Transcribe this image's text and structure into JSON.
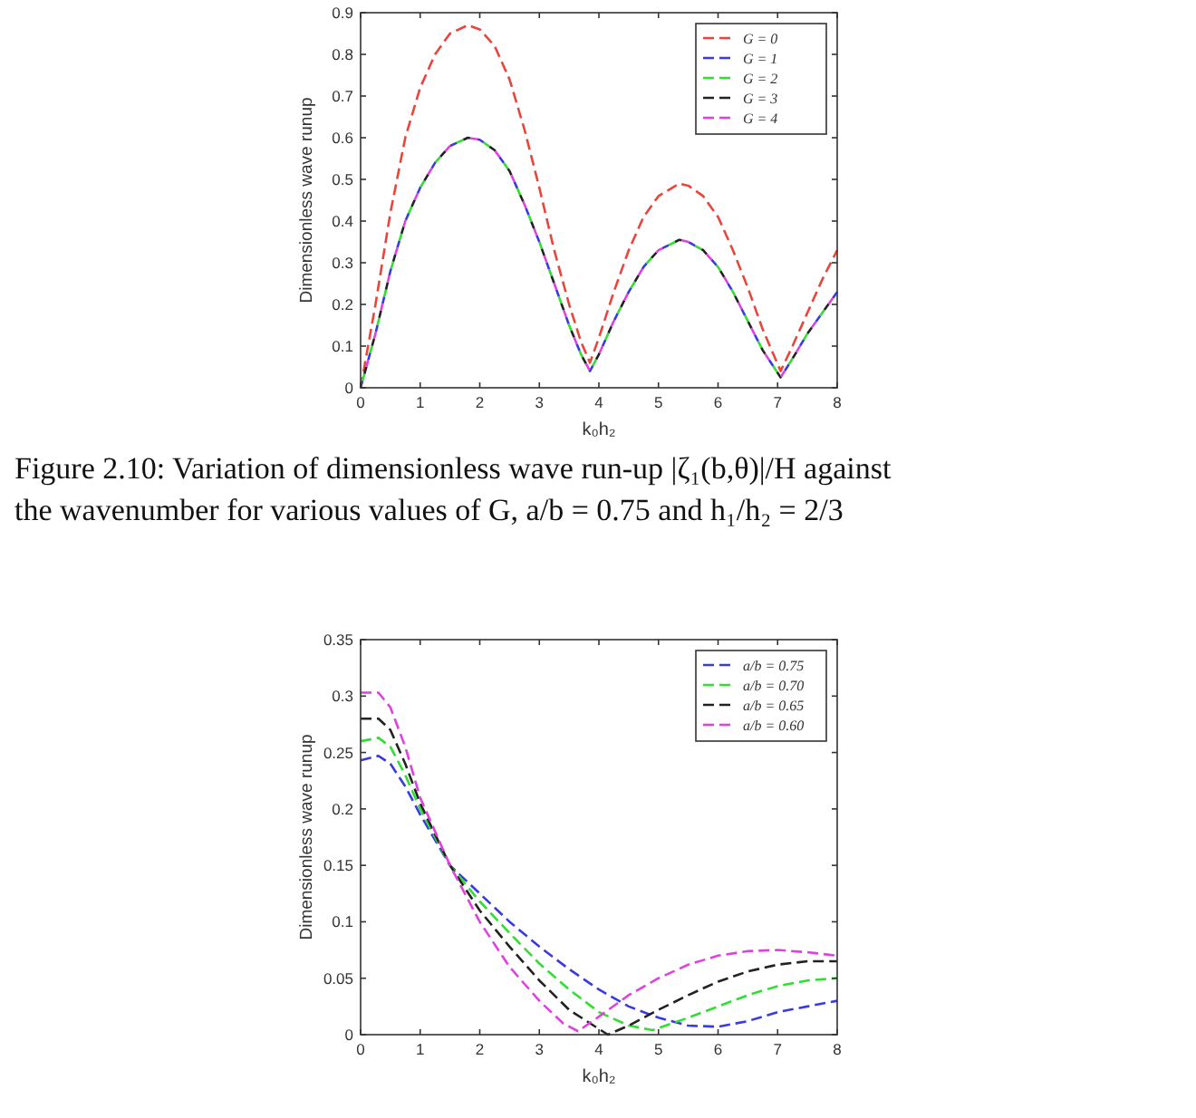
{
  "chart_data": [
    {
      "type": "line",
      "xlabel": "k₀h₂",
      "ylabel": "Dimensionless wave runup",
      "xlim": [
        0,
        8
      ],
      "ylim": [
        0,
        0.9
      ],
      "xticks": [
        0,
        1,
        2,
        3,
        4,
        5,
        6,
        7,
        8
      ],
      "yticks": [
        0,
        0.1,
        0.2,
        0.3,
        0.4,
        0.5,
        0.6,
        0.7,
        0.8,
        0.9
      ],
      "legend": "top right",
      "line_style": "dashed",
      "grid": false,
      "annotations": [
        "Figure 2.10: Variation of dimensionless wave run-up |ζ₁(b,θ)|/H against the wavenumber for various values of G, a/b = 0.75 and h₁/h₂ = 2/3"
      ],
      "x": [
        0,
        0.25,
        0.5,
        0.75,
        1,
        1.25,
        1.5,
        1.8,
        2,
        2.25,
        2.5,
        2.75,
        3,
        3.25,
        3.5,
        3.7,
        3.85,
        4,
        4.25,
        4.5,
        4.75,
        5,
        5.35,
        5.5,
        5.75,
        6,
        6.25,
        6.5,
        6.75,
        7.05,
        7.25,
        7.5,
        7.75,
        8
      ],
      "series": [
        {
          "name": "G = 0",
          "color": "#e8453c",
          "values": [
            0,
            0.2,
            0.42,
            0.6,
            0.72,
            0.8,
            0.85,
            0.87,
            0.86,
            0.82,
            0.74,
            0.62,
            0.48,
            0.33,
            0.2,
            0.11,
            0.06,
            0.12,
            0.23,
            0.33,
            0.41,
            0.46,
            0.49,
            0.485,
            0.46,
            0.41,
            0.33,
            0.24,
            0.14,
            0.04,
            0.1,
            0.18,
            0.26,
            0.33
          ]
        },
        {
          "name": "G = 1",
          "color": "#3a3ae0",
          "values": [
            0,
            0.13,
            0.28,
            0.4,
            0.48,
            0.54,
            0.58,
            0.6,
            0.595,
            0.57,
            0.52,
            0.44,
            0.35,
            0.25,
            0.15,
            0.08,
            0.04,
            0.08,
            0.16,
            0.23,
            0.29,
            0.33,
            0.355,
            0.35,
            0.33,
            0.29,
            0.23,
            0.16,
            0.09,
            0.025,
            0.07,
            0.13,
            0.18,
            0.23
          ]
        },
        {
          "name": "G = 2",
          "color": "#33dd33",
          "values": [
            0,
            0.13,
            0.28,
            0.4,
            0.48,
            0.54,
            0.58,
            0.6,
            0.595,
            0.57,
            0.52,
            0.44,
            0.35,
            0.25,
            0.15,
            0.08,
            0.04,
            0.08,
            0.16,
            0.23,
            0.29,
            0.33,
            0.355,
            0.35,
            0.33,
            0.29,
            0.23,
            0.16,
            0.09,
            0.025,
            0.07,
            0.13,
            0.18,
            0.23
          ]
        },
        {
          "name": "G = 3",
          "color": "#222222",
          "values": [
            0,
            0.13,
            0.28,
            0.4,
            0.48,
            0.54,
            0.58,
            0.6,
            0.595,
            0.57,
            0.52,
            0.44,
            0.35,
            0.25,
            0.15,
            0.08,
            0.04,
            0.08,
            0.16,
            0.23,
            0.29,
            0.33,
            0.355,
            0.35,
            0.33,
            0.29,
            0.23,
            0.16,
            0.09,
            0.025,
            0.07,
            0.13,
            0.18,
            0.23
          ]
        },
        {
          "name": "G = 4",
          "color": "#e040e0",
          "values": [
            0,
            0.13,
            0.28,
            0.4,
            0.48,
            0.54,
            0.58,
            0.6,
            0.595,
            0.57,
            0.52,
            0.44,
            0.35,
            0.25,
            0.15,
            0.08,
            0.04,
            0.08,
            0.16,
            0.23,
            0.29,
            0.33,
            0.355,
            0.35,
            0.33,
            0.29,
            0.23,
            0.16,
            0.09,
            0.025,
            0.07,
            0.13,
            0.18,
            0.23
          ]
        }
      ]
    },
    {
      "type": "line",
      "xlabel": "k₀h₂",
      "ylabel": "Dimensionless wave runup",
      "xlim": [
        0,
        8
      ],
      "ylim": [
        0,
        0.35
      ],
      "xticks": [
        0,
        1,
        2,
        3,
        4,
        5,
        6,
        7,
        8
      ],
      "yticks": [
        0,
        0.05,
        0.1,
        0.15,
        0.2,
        0.25,
        0.3,
        0.35
      ],
      "legend": "top right",
      "line_style": "dashed",
      "grid": false,
      "series": [
        {
          "name": "a/b = 0.75",
          "color": "#3a3ae0",
          "x": [
            0,
            0.3,
            0.5,
            0.75,
            1,
            1.5,
            2,
            2.5,
            3,
            3.5,
            4,
            4.5,
            5,
            5.5,
            6,
            6.5,
            7,
            7.5,
            8
          ],
          "values": [
            0.243,
            0.247,
            0.24,
            0.22,
            0.195,
            0.15,
            0.125,
            0.1,
            0.078,
            0.058,
            0.04,
            0.025,
            0.015,
            0.008,
            0.007,
            0.012,
            0.02,
            0.025,
            0.03
          ]
        },
        {
          "name": "a/b = 0.70",
          "color": "#33dd33",
          "x": [
            0,
            0.3,
            0.5,
            0.75,
            1,
            1.5,
            2,
            2.5,
            3,
            3.5,
            4,
            4.5,
            4.9,
            5.5,
            6,
            6.5,
            7,
            7.5,
            8
          ],
          "values": [
            0.26,
            0.263,
            0.255,
            0.23,
            0.2,
            0.15,
            0.118,
            0.09,
            0.063,
            0.04,
            0.02,
            0.008,
            0.004,
            0.015,
            0.025,
            0.035,
            0.043,
            0.048,
            0.05
          ]
        },
        {
          "name": "a/b = 0.65",
          "color": "#222222",
          "x": [
            0,
            0.3,
            0.5,
            0.75,
            1,
            1.5,
            2,
            2.5,
            3,
            3.5,
            4.15,
            4.5,
            5,
            5.5,
            6,
            6.5,
            7,
            7.5,
            8
          ],
          "values": [
            0.28,
            0.28,
            0.27,
            0.24,
            0.205,
            0.15,
            0.11,
            0.078,
            0.048,
            0.022,
            0,
            0.008,
            0.022,
            0.035,
            0.047,
            0.056,
            0.062,
            0.065,
            0.065
          ]
        },
        {
          "name": "a/b = 0.60",
          "color": "#e040e0",
          "x": [
            0,
            0.3,
            0.5,
            0.75,
            1,
            1.5,
            2,
            2.5,
            3,
            3.4,
            3.65,
            4,
            4.5,
            5,
            5.5,
            6,
            6.5,
            7,
            7.5,
            8
          ],
          "values": [
            0.303,
            0.303,
            0.29,
            0.255,
            0.21,
            0.15,
            0.1,
            0.06,
            0.03,
            0.01,
            0.003,
            0.016,
            0.035,
            0.05,
            0.062,
            0.07,
            0.074,
            0.075,
            0.073,
            0.07
          ]
        }
      ]
    }
  ]
}
